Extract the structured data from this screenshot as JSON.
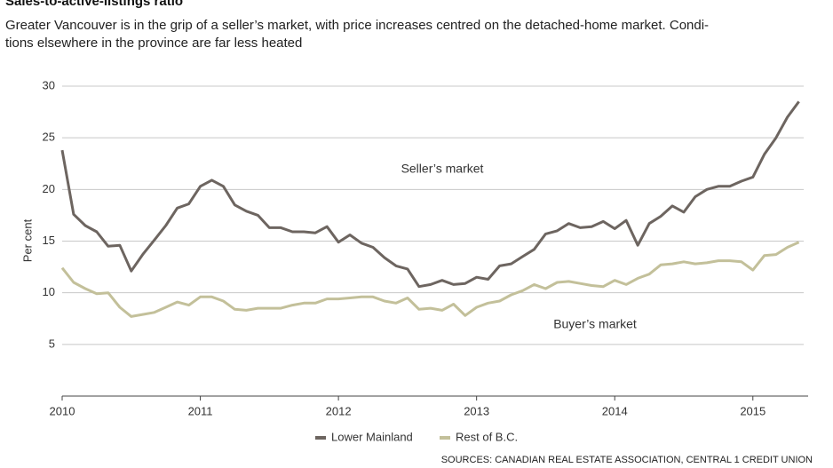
{
  "chart_data": {
    "type": "line",
    "title": "Sales-to-active-listings ratio",
    "subtitle": [
      "Greater Vancouver is in the grip of a seller’s market, with price increases centred on the detached-home market. Condi-",
      "tions elsewhere in the province are far less heated"
    ],
    "y_label": "Per cent",
    "annotations": [
      "Seller’s market",
      "Buyer’s market"
    ],
    "source": "SOURCES: CANADIAN REAL ESTATE ASSOCIATION, CENTRAL 1 CREDIT UNION",
    "x": [
      2010,
      2010.083,
      2010.167,
      2010.25,
      2010.333,
      2010.417,
      2010.5,
      2010.583,
      2010.667,
      2010.75,
      2010.833,
      2010.917,
      2011,
      2011.083,
      2011.167,
      2011.25,
      2011.333,
      2011.417,
      2011.5,
      2011.583,
      2011.667,
      2011.75,
      2011.833,
      2011.917,
      2012,
      2012.083,
      2012.167,
      2012.25,
      2012.333,
      2012.417,
      2012.5,
      2012.583,
      2012.667,
      2012.75,
      2012.833,
      2012.917,
      2013,
      2013.083,
      2013.167,
      2013.25,
      2013.333,
      2013.417,
      2013.5,
      2013.583,
      2013.667,
      2013.75,
      2013.833,
      2013.917,
      2014,
      2014.083,
      2014.167,
      2014.25,
      2014.333,
      2014.417,
      2014.5,
      2014.583,
      2014.667,
      2014.75,
      2014.833,
      2014.917,
      2015,
      2015.083,
      2015.167,
      2015.25,
      2015.333
    ],
    "series": [
      {
        "name": "Lower Mainland",
        "color": "#6d6560",
        "values": [
          23.8,
          17.6,
          16.5,
          15.9,
          14.5,
          14.6,
          12.1,
          13.7,
          15.1,
          16.5,
          18.2,
          18.6,
          20.3,
          20.9,
          20.3,
          18.5,
          17.9,
          17.5,
          16.3,
          16.3,
          15.9,
          15.9,
          15.8,
          16.4,
          14.9,
          15.6,
          14.8,
          14.4,
          13.4,
          12.6,
          12.3,
          10.6,
          10.8,
          11.2,
          10.8,
          10.9,
          11.5,
          11.3,
          12.6,
          12.8,
          13.5,
          14.2,
          15.7,
          16.0,
          16.7,
          16.3,
          16.4,
          16.9,
          16.2,
          17.0,
          14.6,
          16.7,
          17.4,
          18.4,
          17.8,
          19.3,
          20.0,
          20.3,
          20.3,
          20.8,
          21.2,
          23.4,
          25.0,
          27.0,
          28.5
        ]
      },
      {
        "name": "Rest of B.C.",
        "color": "#c3c09a",
        "values": [
          12.4,
          11.0,
          10.4,
          9.9,
          10.0,
          8.6,
          7.7,
          7.9,
          8.1,
          8.6,
          9.1,
          8.8,
          9.6,
          9.6,
          9.2,
          8.4,
          8.3,
          8.5,
          8.5,
          8.5,
          8.8,
          9.0,
          9.0,
          9.4,
          9.4,
          9.5,
          9.6,
          9.6,
          9.2,
          9.0,
          9.5,
          8.4,
          8.5,
          8.3,
          8.9,
          7.8,
          8.6,
          9.0,
          9.2,
          9.8,
          10.2,
          10.8,
          10.4,
          11.0,
          11.1,
          10.9,
          10.7,
          10.6,
          11.2,
          10.8,
          11.4,
          11.8,
          12.7,
          12.8,
          13.0,
          12.8,
          12.9,
          13.1,
          13.1,
          13.0,
          12.2,
          13.6,
          13.7,
          14.4,
          14.9
        ]
      }
    ],
    "xlim": [
      2010,
      2015.4
    ],
    "xticks": [
      2010,
      2011,
      2012,
      2013,
      2014,
      2015
    ],
    "ylim": [
      0,
      30
    ],
    "yticks": [
      5,
      10,
      15,
      20,
      25,
      30
    ],
    "grid": true
  }
}
